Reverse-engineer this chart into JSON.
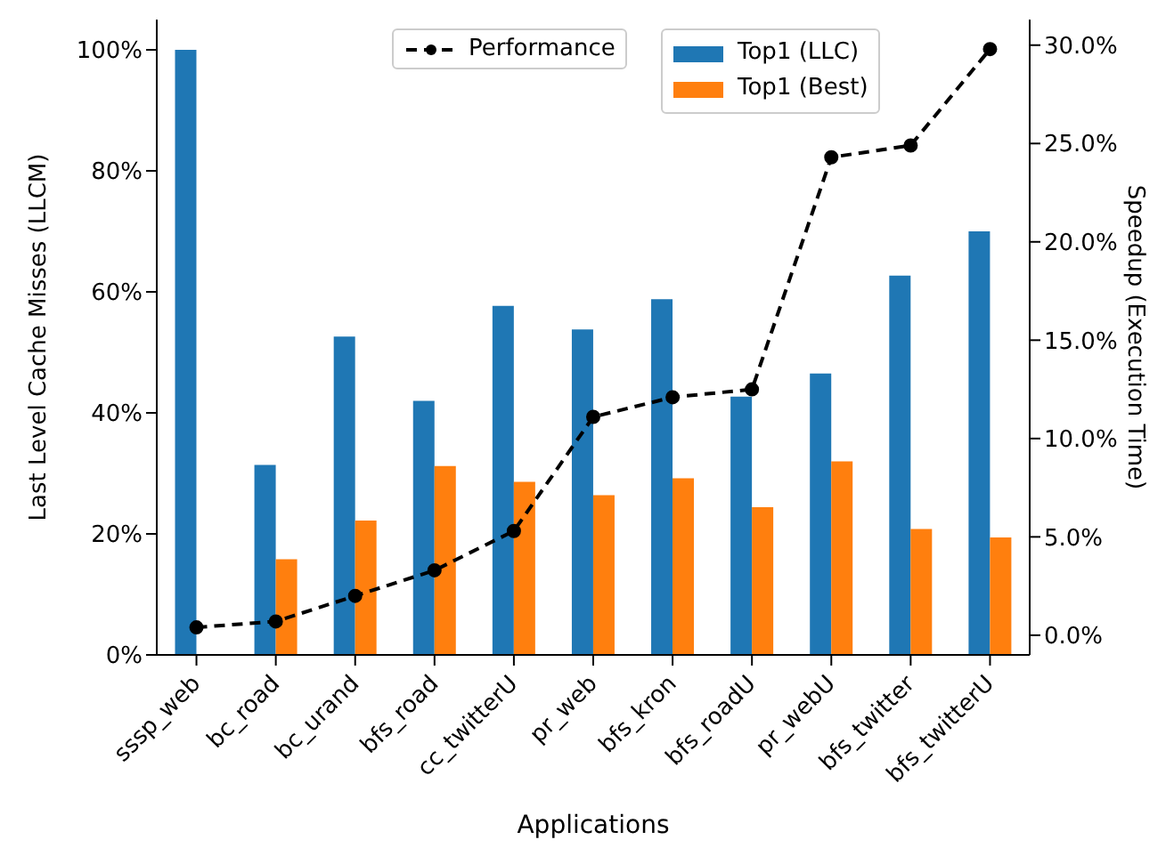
{
  "chart_data": {
    "type": "bar",
    "xlabel": "Applications",
    "ylabel": "Last Level Cache Misses (LLCM)",
    "y2label": "Speedup (Execution Time)",
    "categories": [
      "sssp_web",
      "bc_road",
      "bc_urand",
      "bfs_road",
      "cc_twitterU",
      "pr_web",
      "bfs_kron",
      "bfs_roadU",
      "pr_webU",
      "bfs_twitter",
      "bfs_twitterU"
    ],
    "series": [
      {
        "name": "Top1 (LLC)",
        "color": "#1f77b4",
        "values": [
          100,
          31.4,
          52.6,
          42.0,
          57.7,
          53.8,
          58.8,
          42.7,
          46.5,
          62.7,
          70.0
        ]
      },
      {
        "name": "Top1 (Best)",
        "color": "#ff7f0e",
        "values": [
          null,
          15.8,
          22.2,
          31.2,
          28.6,
          26.4,
          29.2,
          24.4,
          32.0,
          20.8,
          19.4
        ]
      },
      {
        "name": "Performance",
        "type": "line",
        "axis": "y2",
        "color": "#000000",
        "line_style": "dashed",
        "marker": "circle",
        "values": [
          0.4,
          0.7,
          2.0,
          3.3,
          5.3,
          11.1,
          12.1,
          12.5,
          24.3,
          24.9,
          29.8
        ]
      }
    ],
    "ylim": [
      0,
      105
    ],
    "yticks": [
      {
        "value": 0,
        "label": "0%"
      },
      {
        "value": 20,
        "label": "20%"
      },
      {
        "value": 40,
        "label": "40%"
      },
      {
        "value": 60,
        "label": "60%"
      },
      {
        "value": 80,
        "label": "80%"
      },
      {
        "value": 100,
        "label": "100%"
      }
    ],
    "y2lim": [
      -1.0,
      31.3
    ],
    "y2ticks": [
      {
        "value": 0,
        "label": "0.0%"
      },
      {
        "value": 5,
        "label": "5.0%"
      },
      {
        "value": 10,
        "label": "10.0%"
      },
      {
        "value": 15,
        "label": "15.0%"
      },
      {
        "value": 20,
        "label": "20.0%"
      },
      {
        "value": 25,
        "label": "25.0%"
      },
      {
        "value": 30,
        "label": "30.0%"
      }
    ],
    "legend": "top"
  }
}
